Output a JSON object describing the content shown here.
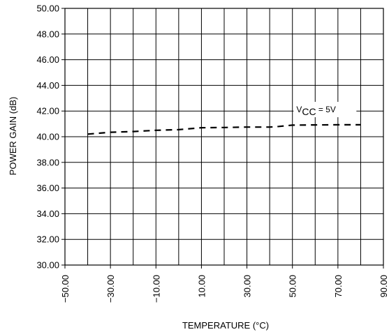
{
  "chart_data": {
    "type": "line",
    "title": "",
    "xlabel": "TEMPERATURE (°C)",
    "ylabel": "POWER GAIN (dB)",
    "xlim": [
      -50,
      90
    ],
    "ylim": [
      30,
      50
    ],
    "x_ticks": [
      "−50.00",
      "−30.00",
      "−10.00",
      "10.00",
      "30.00",
      "50.00",
      "70.00",
      "90.00"
    ],
    "y_ticks": [
      "30.00",
      "32.00",
      "34.00",
      "36.00",
      "38.00",
      "40.00",
      "42.00",
      "44.00",
      "46.00",
      "48.00",
      "50.00"
    ],
    "grid": true,
    "line_style": "dashed",
    "series": [
      {
        "name": "",
        "x": [
          -40,
          -30,
          -20,
          -10,
          0,
          10,
          20,
          30,
          40,
          44,
          50,
          60,
          70,
          80
        ],
        "y": [
          40.2,
          40.35,
          40.4,
          40.5,
          40.55,
          40.7,
          40.72,
          40.75,
          40.75,
          40.8,
          40.9,
          40.92,
          40.93,
          40.93
        ]
      }
    ],
    "annotations": [
      {
        "main": "V",
        "sub": "CC",
        "rest": " = 5V",
        "x": 64,
        "y": 41.9
      }
    ]
  }
}
